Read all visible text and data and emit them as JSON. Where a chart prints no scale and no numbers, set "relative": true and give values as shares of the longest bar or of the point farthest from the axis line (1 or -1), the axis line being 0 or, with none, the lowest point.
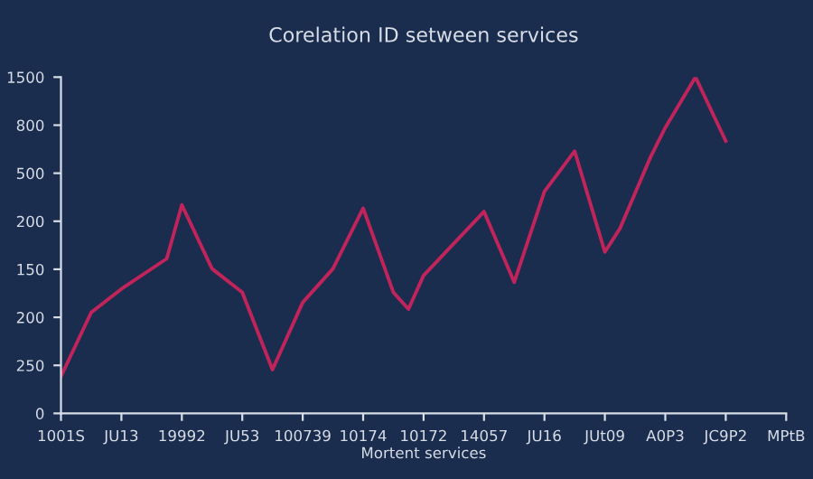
{
  "chart_data": {
    "type": "line",
    "title": "Corelation ID setween services",
    "xlabel": "Mortent services",
    "relative": true,
    "categories": [
      "1001S",
      null,
      null,
      null,
      "JU13",
      null,
      null,
      null,
      "19992",
      null,
      null,
      null,
      "JU53",
      null,
      null,
      null,
      "100739",
      null,
      null,
      null,
      "10174",
      null,
      null,
      null,
      "10172",
      null,
      null,
      null,
      "14057",
      null,
      null,
      null,
      "JU16",
      null,
      null,
      null,
      "JUt09",
      null,
      null,
      null,
      "A0P3",
      null,
      null,
      null,
      "JC9P2",
      null,
      null,
      null,
      "MPtB"
    ],
    "series": [
      {
        "color": "#c0245a",
        "values": [
          0.11,
          null,
          0.3,
          null,
          0.37,
          null,
          null,
          0.46,
          0.62,
          null,
          0.43,
          null,
          0.36,
          null,
          0.13,
          null,
          0.33,
          null,
          0.43,
          null,
          0.61,
          null,
          0.36,
          0.31,
          0.41,
          null,
          null,
          null,
          0.6,
          null,
          0.39,
          null,
          0.66,
          null,
          0.78,
          null,
          0.48,
          0.55,
          null,
          0.76,
          0.85,
          null,
          1,
          null,
          0.81,
          null,
          null,
          null,
          null
        ]
      }
    ],
    "annotations": [
      "0",
      "250",
      "200",
      "150",
      "200",
      "500",
      "800",
      "1500"
    ],
    "marker": "none",
    "line_style": "solid"
  }
}
